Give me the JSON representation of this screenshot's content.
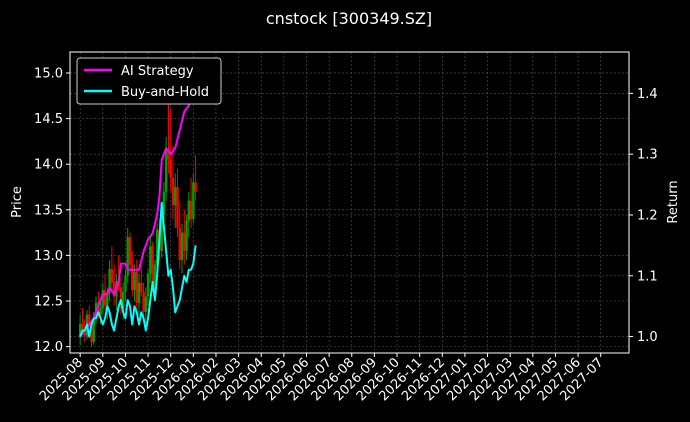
{
  "chart_data": {
    "type": "line",
    "title": "cnstock [300349.SZ]",
    "ylabel_left": "Price",
    "ylabel_right": "Return",
    "ylim_left": [
      11.93,
      15.23
    ],
    "ylim_right": [
      0.973,
      1.468
    ],
    "left_ticks": [
      "12.0",
      "12.5",
      "13.0",
      "13.5",
      "14.0",
      "14.5",
      "15.0"
    ],
    "right_ticks": [
      "1.0",
      "1.1",
      "1.2",
      "1.3",
      "1.4"
    ],
    "x_ticks": [
      "2025-08",
      "2025-09",
      "2025-10",
      "2025-11",
      "2025-12",
      "2026-01",
      "2026-02",
      "2026-03",
      "2026-04",
      "2026-05",
      "2026-06",
      "2026-07",
      "2026-08",
      "2026-09",
      "2026-10",
      "2026-11",
      "2026-12",
      "2027-01",
      "2027-02",
      "2027-03",
      "2027-04",
      "2027-05",
      "2027-06",
      "2027-07"
    ],
    "x_range_months": [
      -0.45,
      24.25
    ],
    "grid": true,
    "legend": {
      "placement": "top-left",
      "entries": [
        "AI Strategy",
        "Buy-and-Hold"
      ]
    },
    "colors": {
      "background": "#000000",
      "ai_strategy": "#ff00ff",
      "buy_hold": "#00ffff",
      "up_candle": "#00a000",
      "down_candle": "#ff0000",
      "grid": "#555555"
    },
    "candles": [
      {
        "t": 0.0,
        "o": 12.1,
        "h": 12.35,
        "l": 12.02,
        "c": 12.25
      },
      {
        "t": 0.1,
        "o": 12.25,
        "h": 12.42,
        "l": 12.15,
        "c": 12.18
      },
      {
        "t": 0.2,
        "o": 12.18,
        "h": 12.3,
        "l": 12.05,
        "c": 12.12
      },
      {
        "t": 0.3,
        "o": 12.12,
        "h": 12.4,
        "l": 12.08,
        "c": 12.35
      },
      {
        "t": 0.4,
        "o": 12.35,
        "h": 12.45,
        "l": 12.2,
        "c": 12.22
      },
      {
        "t": 0.5,
        "o": 12.22,
        "h": 12.3,
        "l": 12.0,
        "c": 12.05
      },
      {
        "t": 0.6,
        "o": 12.05,
        "h": 12.38,
        "l": 12.02,
        "c": 12.32
      },
      {
        "t": 0.7,
        "o": 12.32,
        "h": 12.55,
        "l": 12.25,
        "c": 12.48
      },
      {
        "t": 0.8,
        "o": 12.48,
        "h": 12.6,
        "l": 12.3,
        "c": 12.35
      },
      {
        "t": 0.9,
        "o": 12.35,
        "h": 12.5,
        "l": 12.25,
        "c": 12.42
      },
      {
        "t": 1.0,
        "o": 12.42,
        "h": 12.7,
        "l": 12.35,
        "c": 12.62
      },
      {
        "t": 1.1,
        "o": 12.62,
        "h": 12.8,
        "l": 12.4,
        "c": 12.45
      },
      {
        "t": 1.2,
        "o": 12.45,
        "h": 12.65,
        "l": 12.3,
        "c": 12.58
      },
      {
        "t": 1.3,
        "o": 12.58,
        "h": 12.95,
        "l": 12.5,
        "c": 12.85
      },
      {
        "t": 1.4,
        "o": 12.85,
        "h": 13.1,
        "l": 12.6,
        "c": 12.7
      },
      {
        "t": 1.5,
        "o": 12.7,
        "h": 12.9,
        "l": 12.45,
        "c": 12.55
      },
      {
        "t": 1.6,
        "o": 12.55,
        "h": 12.8,
        "l": 12.4,
        "c": 12.72
      },
      {
        "t": 1.7,
        "o": 12.72,
        "h": 13.0,
        "l": 12.6,
        "c": 12.65
      },
      {
        "t": 1.8,
        "o": 12.65,
        "h": 12.75,
        "l": 12.35,
        "c": 12.42
      },
      {
        "t": 1.9,
        "o": 12.42,
        "h": 12.7,
        "l": 12.3,
        "c": 12.6
      },
      {
        "t": 2.0,
        "o": 12.6,
        "h": 12.85,
        "l": 12.5,
        "c": 12.78
      },
      {
        "t": 2.1,
        "o": 12.78,
        "h": 13.3,
        "l": 12.7,
        "c": 13.2
      },
      {
        "t": 2.2,
        "o": 13.2,
        "h": 13.25,
        "l": 12.8,
        "c": 12.9
      },
      {
        "t": 2.3,
        "o": 12.9,
        "h": 13.05,
        "l": 12.55,
        "c": 12.62
      },
      {
        "t": 2.4,
        "o": 12.62,
        "h": 12.9,
        "l": 12.5,
        "c": 12.82
      },
      {
        "t": 2.5,
        "o": 12.82,
        "h": 12.95,
        "l": 12.4,
        "c": 12.48
      },
      {
        "t": 2.6,
        "o": 12.48,
        "h": 12.8,
        "l": 12.35,
        "c": 12.7
      },
      {
        "t": 2.7,
        "o": 12.7,
        "h": 12.9,
        "l": 12.55,
        "c": 12.6
      },
      {
        "t": 2.8,
        "o": 12.6,
        "h": 12.7,
        "l": 12.3,
        "c": 12.38
      },
      {
        "t": 2.9,
        "o": 12.38,
        "h": 12.65,
        "l": 12.25,
        "c": 12.55
      },
      {
        "t": 3.0,
        "o": 12.55,
        "h": 12.85,
        "l": 12.45,
        "c": 12.8
      },
      {
        "t": 3.1,
        "o": 12.8,
        "h": 13.2,
        "l": 12.7,
        "c": 13.1
      },
      {
        "t": 3.2,
        "o": 13.1,
        "h": 13.15,
        "l": 12.6,
        "c": 12.68
      },
      {
        "t": 3.3,
        "o": 12.68,
        "h": 12.95,
        "l": 12.55,
        "c": 12.9
      },
      {
        "t": 3.4,
        "o": 12.9,
        "h": 13.35,
        "l": 12.85,
        "c": 13.28
      },
      {
        "t": 3.5,
        "o": 13.28,
        "h": 13.4,
        "l": 12.95,
        "c": 13.05
      },
      {
        "t": 3.6,
        "o": 13.05,
        "h": 13.55,
        "l": 12.98,
        "c": 13.45
      },
      {
        "t": 3.7,
        "o": 13.45,
        "h": 13.8,
        "l": 13.3,
        "c": 13.7
      },
      {
        "t": 3.8,
        "o": 13.7,
        "h": 14.3,
        "l": 13.6,
        "c": 14.15
      },
      {
        "t": 3.9,
        "o": 14.15,
        "h": 14.7,
        "l": 13.9,
        "c": 14.05
      },
      {
        "t": 4.0,
        "o": 14.05,
        "h": 14.6,
        "l": 13.7,
        "c": 13.85
      },
      {
        "t": 4.1,
        "o": 13.85,
        "h": 14.2,
        "l": 13.4,
        "c": 13.55
      },
      {
        "t": 4.2,
        "o": 13.55,
        "h": 13.9,
        "l": 13.3,
        "c": 13.75
      },
      {
        "t": 4.3,
        "o": 13.75,
        "h": 13.95,
        "l": 13.2,
        "c": 13.3
      },
      {
        "t": 4.4,
        "o": 13.3,
        "h": 13.6,
        "l": 12.85,
        "c": 12.95
      },
      {
        "t": 4.5,
        "o": 12.95,
        "h": 13.35,
        "l": 12.8,
        "c": 13.25
      },
      {
        "t": 4.6,
        "o": 13.25,
        "h": 13.5,
        "l": 12.9,
        "c": 13.05
      },
      {
        "t": 4.7,
        "o": 13.05,
        "h": 13.45,
        "l": 12.95,
        "c": 13.38
      },
      {
        "t": 4.8,
        "o": 13.38,
        "h": 13.7,
        "l": 13.2,
        "c": 13.6
      },
      {
        "t": 4.9,
        "o": 13.6,
        "h": 13.85,
        "l": 13.3,
        "c": 13.4
      },
      {
        "t": 5.0,
        "o": 13.4,
        "h": 13.9,
        "l": 13.35,
        "c": 13.8
      },
      {
        "t": 5.1,
        "o": 13.8,
        "h": 14.1,
        "l": 13.6,
        "c": 13.7
      }
    ],
    "series": [
      {
        "name": "AI Strategy",
        "x": [
          0.0,
          0.2,
          0.4,
          0.6,
          0.8,
          1.0,
          1.2,
          1.3,
          1.5,
          1.7,
          1.8,
          2.0,
          2.1,
          2.4,
          2.6,
          2.8,
          3.0,
          3.2,
          3.4,
          3.5,
          3.6,
          3.8,
          4.0,
          4.2,
          4.4,
          4.6,
          4.8,
          5.0,
          5.1
        ],
        "y": [
          1.0,
          1.01,
          1.02,
          1.03,
          1.05,
          1.07,
          1.07,
          1.08,
          1.07,
          1.09,
          1.12,
          1.12,
          1.11,
          1.11,
          1.11,
          1.14,
          1.16,
          1.17,
          1.2,
          1.23,
          1.29,
          1.31,
          1.3,
          1.31,
          1.34,
          1.37,
          1.38,
          1.4,
          1.44
        ]
      },
      {
        "name": "Buy-and-Hold",
        "x": [
          0.0,
          0.1,
          0.2,
          0.3,
          0.4,
          0.5,
          0.6,
          0.7,
          0.8,
          0.9,
          1.0,
          1.1,
          1.2,
          1.3,
          1.4,
          1.5,
          1.6,
          1.7,
          1.8,
          1.9,
          2.0,
          2.1,
          2.2,
          2.3,
          2.4,
          2.5,
          2.6,
          2.7,
          2.8,
          2.9,
          3.0,
          3.1,
          3.2,
          3.3,
          3.4,
          3.5,
          3.6,
          3.7,
          3.8,
          3.9,
          4.0,
          4.1,
          4.2,
          4.3,
          4.4,
          4.5,
          4.6,
          4.7,
          4.8,
          4.9,
          5.0,
          5.1
        ],
        "y": [
          1.0,
          1.01,
          1.01,
          1.02,
          1.0,
          1.02,
          1.03,
          1.03,
          1.04,
          1.03,
          1.02,
          1.03,
          1.05,
          1.04,
          1.02,
          1.01,
          1.03,
          1.05,
          1.06,
          1.04,
          1.03,
          1.06,
          1.05,
          1.02,
          1.05,
          1.04,
          1.02,
          1.04,
          1.03,
          1.01,
          1.03,
          1.06,
          1.09,
          1.06,
          1.1,
          1.16,
          1.22,
          1.18,
          1.14,
          1.1,
          1.11,
          1.08,
          1.04,
          1.05,
          1.06,
          1.08,
          1.1,
          1.09,
          1.11,
          1.11,
          1.12,
          1.15
        ]
      }
    ]
  }
}
